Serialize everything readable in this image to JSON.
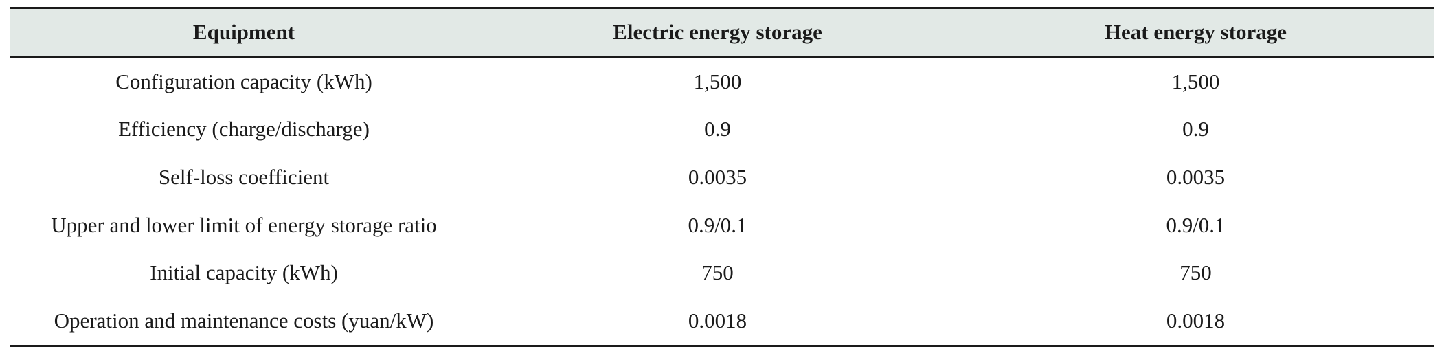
{
  "table": {
    "headers": [
      "Equipment",
      "Electric energy storage",
      "Heat energy storage"
    ],
    "rows": [
      [
        "Configuration capacity (kWh)",
        "1,500",
        "1,500"
      ],
      [
        "Efficiency (charge/discharge)",
        "0.9",
        "0.9"
      ],
      [
        "Self-loss coefficient",
        "0.0035",
        "0.0035"
      ],
      [
        "Upper and lower limit of energy storage ratio",
        "0.9/0.1",
        "0.9/0.1"
      ],
      [
        "Initial capacity (kWh)",
        "750",
        "750"
      ],
      [
        "Operation and maintenance costs (yuan/kW)",
        "0.0018",
        "0.0018"
      ]
    ]
  },
  "colors": {
    "header_background": "#e2e9e6",
    "text": "#1a1a1a",
    "rule": "#1a1a1a"
  }
}
